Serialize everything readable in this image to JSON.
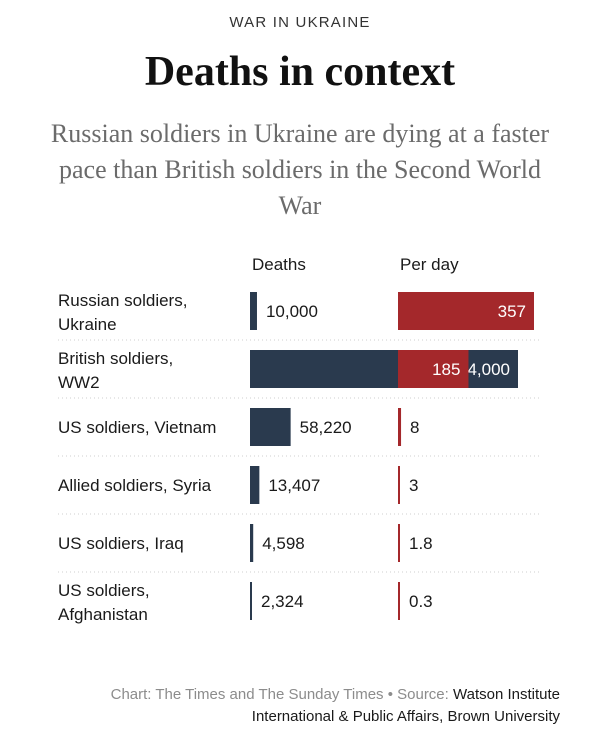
{
  "header": {
    "kicker": "WAR IN UKRAINE",
    "title": "Deaths in context",
    "subtitle": "Russian soldiers in Ukraine are dying at a faster pace than British soldiers in the Second World War"
  },
  "footer": {
    "credit": "Chart: The Times and The Sunday Times • Source:",
    "source": "Watson Institute International & Public Affairs, Brown University"
  },
  "colors": {
    "deaths": "#2a3a4e",
    "per_day": "#a4282b",
    "row_divider": "#cfcfcf"
  },
  "chart_data": {
    "type": "bar",
    "title": "",
    "columns": [
      "Deaths",
      "Per day"
    ],
    "categories": [
      "Russian soldiers, Ukraine",
      "British soldiers, WW2",
      "US soldiers, Vietnam",
      "Allied soldiers, Syria",
      "US soldiers, Iraq",
      "US soldiers, Afghanistan"
    ],
    "category_lines": [
      [
        "Russian soldiers,",
        "Ukraine"
      ],
      [
        "British soldiers,",
        "WW2"
      ],
      [
        "US soldiers, Vietnam"
      ],
      [
        "Allied soldiers, Syria"
      ],
      [
        "US soldiers, Iraq"
      ],
      [
        "US soldiers,",
        "Afghanistan"
      ]
    ],
    "series": [
      {
        "name": "Deaths",
        "values": [
          10000,
          384000,
          58220,
          13407,
          4598,
          2324
        ],
        "labels": [
          "10,000",
          "384,000",
          "58,220",
          "13,407",
          "4,598",
          "2,324"
        ],
        "max": 384000
      },
      {
        "name": "Per day",
        "values": [
          357,
          185,
          8,
          3,
          1.8,
          0.3
        ],
        "labels": [
          "357",
          "185",
          "8",
          "3",
          "1.8",
          "0.3"
        ],
        "max": 357
      }
    ]
  }
}
